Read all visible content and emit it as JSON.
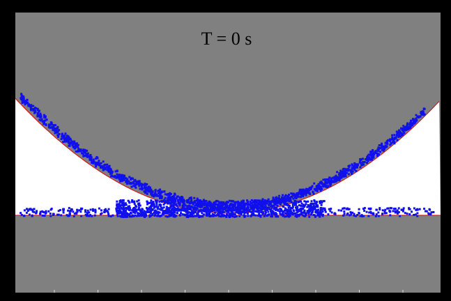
{
  "title": "T = 0 s"
}
